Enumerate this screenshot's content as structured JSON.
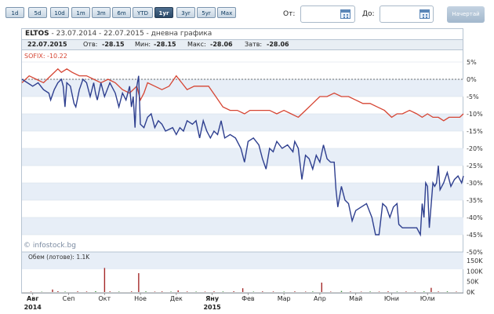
{
  "range_buttons": [
    {
      "label": "1d",
      "active": false
    },
    {
      "label": "5d",
      "active": false
    },
    {
      "label": "10d",
      "active": false
    },
    {
      "label": "1m",
      "active": false
    },
    {
      "label": "3m",
      "active": false
    },
    {
      "label": "6m",
      "active": false
    },
    {
      "label": "YTD",
      "active": false
    },
    {
      "label": "1yr",
      "active": true
    },
    {
      "label": "3yr",
      "active": false
    },
    {
      "label": "5yr",
      "active": false
    },
    {
      "label": "Max",
      "active": false
    }
  ],
  "date_from": {
    "label": "От:",
    "value": ""
  },
  "date_to": {
    "label": "До:",
    "value": ""
  },
  "show_button": "Начертай",
  "header": {
    "ticker": "ELTOS",
    "subtitle": " - 23.07.2014 - 22.07.2015 - дневна графика"
  },
  "quote": {
    "date": "22.07.2015",
    "open_label": "Отв:",
    "open": "-28.15",
    "min_label": "Мин:",
    "min": "-28.15",
    "max_label": "Макс:",
    "max": "-28.06",
    "close_label": "Затв:",
    "close": "-28.06"
  },
  "sofix_label": "SOFIX: -10.22",
  "watermark": "© infostock.bg",
  "volume_label": "Обем (лотове): 1.1K",
  "colors": {
    "eltos": "#2e3f8f",
    "sofix": "#d64533",
    "vol_green": "#2f8a2f",
    "vol_red": "#a52a2a",
    "band": "#e7eef7"
  },
  "chart_data": {
    "type": "line",
    "y_ticks": [
      "5%",
      "0%",
      "-5%",
      "-10%",
      "-15%",
      "-20%",
      "-25%",
      "-30%",
      "-35%",
      "-40%",
      "-45%",
      "-50%"
    ],
    "ylim": [
      -50,
      5
    ],
    "volume_ticks": [
      "150K",
      "100K",
      "50K",
      "0K"
    ],
    "volume_ylim": [
      0,
      150000
    ],
    "x_ticks": [
      "Авг",
      "Сеп",
      "Окт",
      "Ное",
      "Дек",
      "Яну",
      "Фев",
      "Мар",
      "Апр",
      "Май",
      "Юни",
      "Юли"
    ],
    "x_years": [
      {
        "label": "2014",
        "at": "Авг"
      },
      {
        "label": "2015",
        "at": "Яну"
      }
    ],
    "x_months_from_start": [
      0.3,
      1.3,
      2.3,
      3.3,
      4.3,
      5.3,
      6.3,
      7.3,
      8.3,
      9.3,
      10.3,
      11.3
    ],
    "series": [
      {
        "name": "ELTOS",
        "values": [
          [
            0,
            0
          ],
          [
            0.15,
            -1
          ],
          [
            0.3,
            -2
          ],
          [
            0.45,
            -1
          ],
          [
            0.6,
            -3
          ],
          [
            0.75,
            -4
          ],
          [
            0.8,
            -6
          ],
          [
            0.9,
            -3
          ],
          [
            1.0,
            -1
          ],
          [
            1.1,
            0
          ],
          [
            1.15,
            -2
          ],
          [
            1.2,
            -8
          ],
          [
            1.25,
            -1
          ],
          [
            1.35,
            -2
          ],
          [
            1.45,
            -7
          ],
          [
            1.5,
            -8
          ],
          [
            1.6,
            -3
          ],
          [
            1.7,
            0
          ],
          [
            1.8,
            -1
          ],
          [
            1.9,
            -5
          ],
          [
            2.0,
            -1
          ],
          [
            2.05,
            -4
          ],
          [
            2.1,
            -6
          ],
          [
            2.2,
            -1
          ],
          [
            2.3,
            -5
          ],
          [
            2.45,
            -1
          ],
          [
            2.6,
            -4
          ],
          [
            2.7,
            -8
          ],
          [
            2.8,
            -4
          ],
          [
            2.9,
            -6
          ],
          [
            3.0,
            -2
          ],
          [
            3.05,
            -8
          ],
          [
            3.1,
            -5
          ],
          [
            3.15,
            -14
          ],
          [
            3.2,
            -2
          ],
          [
            3.25,
            1
          ],
          [
            3.3,
            -13
          ],
          [
            3.4,
            -14
          ],
          [
            3.5,
            -11
          ],
          [
            3.6,
            -10
          ],
          [
            3.7,
            -14
          ],
          [
            3.8,
            -12
          ],
          [
            3.9,
            -13
          ],
          [
            4.0,
            -15
          ],
          [
            4.2,
            -14
          ],
          [
            4.3,
            -16
          ],
          [
            4.4,
            -14
          ],
          [
            4.5,
            -15
          ],
          [
            4.6,
            -12
          ],
          [
            4.75,
            -13
          ],
          [
            4.85,
            -12
          ],
          [
            4.95,
            -17
          ],
          [
            5.05,
            -12
          ],
          [
            5.15,
            -15
          ],
          [
            5.25,
            -17
          ],
          [
            5.35,
            -15
          ],
          [
            5.45,
            -16
          ],
          [
            5.55,
            -12
          ],
          [
            5.65,
            -17
          ],
          [
            5.8,
            -16
          ],
          [
            5.95,
            -17
          ],
          [
            6.1,
            -20
          ],
          [
            6.2,
            -24
          ],
          [
            6.3,
            -18
          ],
          [
            6.45,
            -17
          ],
          [
            6.6,
            -19
          ],
          [
            6.7,
            -23
          ],
          [
            6.8,
            -26
          ],
          [
            6.9,
            -20
          ],
          [
            7.0,
            -21
          ],
          [
            7.1,
            -18
          ],
          [
            7.25,
            -20
          ],
          [
            7.4,
            -19
          ],
          [
            7.55,
            -21
          ],
          [
            7.6,
            -18
          ],
          [
            7.7,
            -20
          ],
          [
            7.8,
            -29
          ],
          [
            7.9,
            -22
          ],
          [
            8.0,
            -23
          ],
          [
            8.1,
            -26
          ],
          [
            8.2,
            -22
          ],
          [
            8.3,
            -24
          ],
          [
            8.4,
            -19
          ],
          [
            8.5,
            -23
          ],
          [
            8.6,
            -24
          ],
          [
            8.7,
            -24
          ],
          [
            8.75,
            -32
          ],
          [
            8.8,
            -37
          ],
          [
            8.9,
            -31
          ],
          [
            9.0,
            -35
          ],
          [
            9.1,
            -36
          ],
          [
            9.2,
            -41
          ],
          [
            9.3,
            -38
          ],
          [
            9.45,
            -37
          ],
          [
            9.6,
            -36
          ],
          [
            9.75,
            -40
          ],
          [
            9.85,
            -45
          ],
          [
            9.95,
            -45
          ],
          [
            10.05,
            -36
          ],
          [
            10.15,
            -37
          ],
          [
            10.25,
            -40
          ],
          [
            10.35,
            -37
          ],
          [
            10.45,
            -36
          ],
          [
            10.5,
            -42
          ],
          [
            10.6,
            -43
          ],
          [
            10.75,
            -43
          ],
          [
            10.9,
            -43
          ],
          [
            11.0,
            -43
          ],
          [
            11.1,
            -45
          ],
          [
            11.15,
            -36
          ],
          [
            11.2,
            -40
          ],
          [
            11.25,
            -30
          ],
          [
            11.3,
            -31
          ],
          [
            11.35,
            -43
          ],
          [
            11.45,
            -30
          ],
          [
            11.5,
            -31
          ],
          [
            11.55,
            -30
          ],
          [
            11.6,
            -25
          ],
          [
            11.65,
            -32
          ],
          [
            11.75,
            -30
          ],
          [
            11.85,
            -27
          ],
          [
            11.95,
            -31
          ],
          [
            12.05,
            -29
          ],
          [
            12.15,
            -28
          ],
          [
            12.25,
            -30
          ],
          [
            12.3,
            -28
          ]
        ]
      },
      {
        "name": "SOFIX",
        "values": [
          [
            0,
            -1
          ],
          [
            0.2,
            1
          ],
          [
            0.4,
            0
          ],
          [
            0.6,
            -1
          ],
          [
            0.8,
            1
          ],
          [
            1.0,
            3
          ],
          [
            1.1,
            2
          ],
          [
            1.25,
            3
          ],
          [
            1.4,
            2
          ],
          [
            1.6,
            1
          ],
          [
            1.8,
            1
          ],
          [
            2.0,
            0
          ],
          [
            2.2,
            -1
          ],
          [
            2.4,
            0
          ],
          [
            2.6,
            -1
          ],
          [
            2.8,
            -3
          ],
          [
            3.0,
            -4
          ],
          [
            3.2,
            -2
          ],
          [
            3.3,
            -6
          ],
          [
            3.4,
            -4
          ],
          [
            3.5,
            -1
          ],
          [
            3.7,
            -2
          ],
          [
            3.9,
            -3
          ],
          [
            4.1,
            -2
          ],
          [
            4.3,
            1
          ],
          [
            4.45,
            -1
          ],
          [
            4.6,
            -3
          ],
          [
            4.8,
            -2
          ],
          [
            5.0,
            -2
          ],
          [
            5.2,
            -2
          ],
          [
            5.4,
            -5
          ],
          [
            5.6,
            -8
          ],
          [
            5.8,
            -9
          ],
          [
            6.0,
            -9
          ],
          [
            6.2,
            -10
          ],
          [
            6.35,
            -9
          ],
          [
            6.5,
            -9
          ],
          [
            6.7,
            -9
          ],
          [
            6.9,
            -9
          ],
          [
            7.1,
            -10
          ],
          [
            7.3,
            -9
          ],
          [
            7.5,
            -10
          ],
          [
            7.7,
            -11
          ],
          [
            7.9,
            -9
          ],
          [
            8.1,
            -7
          ],
          [
            8.3,
            -5
          ],
          [
            8.5,
            -5
          ],
          [
            8.7,
            -4
          ],
          [
            8.9,
            -5
          ],
          [
            9.1,
            -5
          ],
          [
            9.3,
            -6
          ],
          [
            9.5,
            -7
          ],
          [
            9.7,
            -7
          ],
          [
            9.9,
            -8
          ],
          [
            10.1,
            -9
          ],
          [
            10.3,
            -11
          ],
          [
            10.45,
            -10
          ],
          [
            10.6,
            -10
          ],
          [
            10.8,
            -9
          ],
          [
            11.0,
            -10
          ],
          [
            11.15,
            -11
          ],
          [
            11.3,
            -10
          ],
          [
            11.45,
            -11
          ],
          [
            11.6,
            -11
          ],
          [
            11.75,
            -12
          ],
          [
            11.9,
            -11
          ],
          [
            12.05,
            -11
          ],
          [
            12.2,
            -11
          ],
          [
            12.3,
            -10
          ]
        ]
      }
    ],
    "volume": [
      {
        "x": 0.25,
        "v": 2000
      },
      {
        "x": 0.55,
        "v": 1500
      },
      {
        "x": 0.85,
        "v": 12000
      },
      {
        "x": 1.0,
        "v": 4000
      },
      {
        "x": 1.2,
        "v": 2000
      },
      {
        "x": 1.55,
        "v": 3000
      },
      {
        "x": 1.8,
        "v": 2500
      },
      {
        "x": 2.05,
        "v": 4000
      },
      {
        "x": 2.3,
        "v": 115000
      },
      {
        "x": 2.45,
        "v": 3000
      },
      {
        "x": 2.7,
        "v": 2000
      },
      {
        "x": 3.05,
        "v": 3000
      },
      {
        "x": 3.25,
        "v": 90000
      },
      {
        "x": 3.45,
        "v": 3000
      },
      {
        "x": 3.7,
        "v": 2000
      },
      {
        "x": 3.9,
        "v": 3000
      },
      {
        "x": 4.15,
        "v": 2000
      },
      {
        "x": 4.35,
        "v": 8000
      },
      {
        "x": 4.6,
        "v": 2500
      },
      {
        "x": 4.85,
        "v": 2000
      },
      {
        "x": 5.1,
        "v": 2000
      },
      {
        "x": 5.35,
        "v": 3000
      },
      {
        "x": 5.6,
        "v": 2500
      },
      {
        "x": 5.9,
        "v": 3500
      },
      {
        "x": 6.15,
        "v": 18000
      },
      {
        "x": 6.45,
        "v": 2000
      },
      {
        "x": 6.7,
        "v": 3000
      },
      {
        "x": 7.0,
        "v": 2500
      },
      {
        "x": 7.3,
        "v": 2000
      },
      {
        "x": 7.6,
        "v": 3000
      },
      {
        "x": 7.9,
        "v": 2000
      },
      {
        "x": 8.1,
        "v": 2500
      },
      {
        "x": 8.35,
        "v": 45000
      },
      {
        "x": 8.6,
        "v": 2000
      },
      {
        "x": 8.9,
        "v": 5000
      },
      {
        "x": 9.15,
        "v": 2500
      },
      {
        "x": 9.45,
        "v": 2000
      },
      {
        "x": 9.7,
        "v": 2500
      },
      {
        "x": 9.95,
        "v": 2000
      },
      {
        "x": 10.2,
        "v": 3000
      },
      {
        "x": 10.45,
        "v": 2000
      },
      {
        "x": 10.7,
        "v": 2500
      },
      {
        "x": 10.95,
        "v": 2000
      },
      {
        "x": 11.2,
        "v": 3000
      },
      {
        "x": 11.4,
        "v": 20000
      },
      {
        "x": 11.6,
        "v": 2500
      },
      {
        "x": 11.85,
        "v": 3000
      },
      {
        "x": 12.1,
        "v": 2000
      }
    ],
    "grid": true
  }
}
